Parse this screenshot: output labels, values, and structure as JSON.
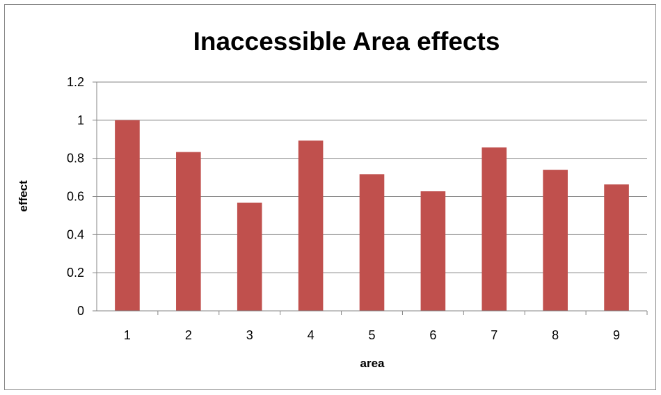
{
  "chart_data": {
    "type": "bar",
    "title": "Inaccessible Area effects",
    "xlabel": "area",
    "ylabel": "effect",
    "categories": [
      "1",
      "2",
      "3",
      "4",
      "5",
      "6",
      "7",
      "8",
      "9"
    ],
    "values": [
      1.0,
      0.833,
      0.567,
      0.893,
      0.717,
      0.627,
      0.857,
      0.74,
      0.663
    ],
    "ylim": [
      0,
      1.2
    ],
    "yticks": [
      "0",
      "0.2",
      "0.4",
      "0.6",
      "0.8",
      "1",
      "1.2"
    ],
    "ytick_values": [
      0,
      0.2,
      0.4,
      0.6,
      0.8,
      1.0,
      1.2
    ],
    "grid": true,
    "legend": "none",
    "colors": {
      "bar": "#c0504d",
      "grid": "#868686",
      "axis": "#868686"
    }
  }
}
